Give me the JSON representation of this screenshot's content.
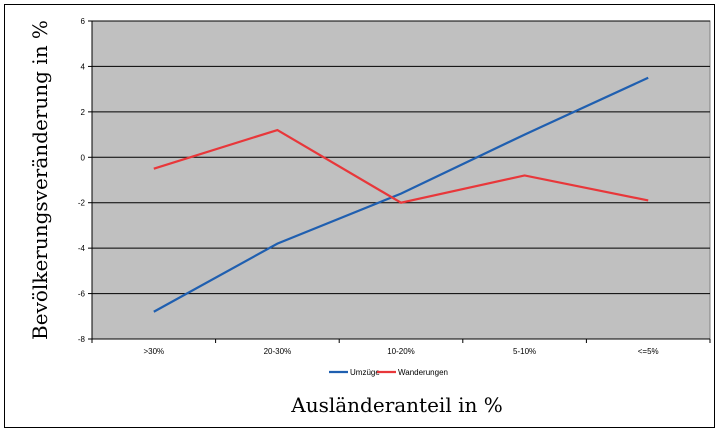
{
  "chart_data": {
    "type": "line",
    "categories": [
      ">30%",
      "20-30%",
      "10-20%",
      "5-10%",
      "<=5%"
    ],
    "series": [
      {
        "name": "Umzüge",
        "values": [
          -6.8,
          -3.8,
          -1.6,
          1.0,
          3.5
        ],
        "color": "#1F5FB0"
      },
      {
        "name": "Wanderungen",
        "values": [
          -0.5,
          1.2,
          -2.0,
          -0.8,
          -1.9
        ],
        "color": "#E8373A"
      }
    ],
    "xlabel": "Ausländeranteil in %",
    "ylabel": "Bevölkerungsveränderung in %",
    "ylim": [
      -8,
      6
    ],
    "yticks": [
      6,
      4,
      2,
      0,
      -2,
      -4,
      -6,
      -8
    ],
    "grid": true,
    "plot_background": "#C0C0C0",
    "legend_position": "bottom"
  }
}
